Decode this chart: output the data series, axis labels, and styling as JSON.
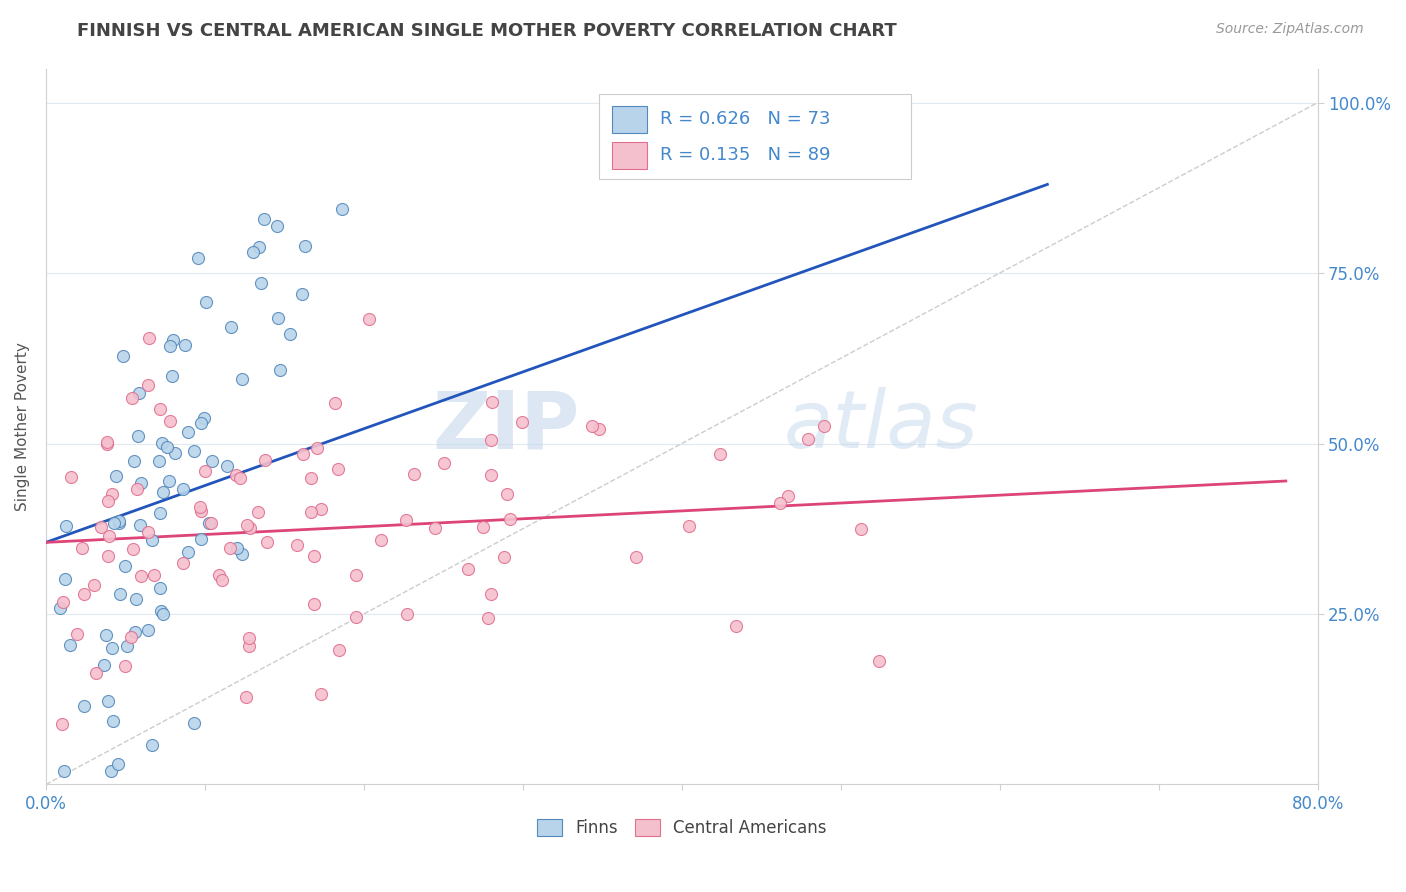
{
  "title": "FINNISH VS CENTRAL AMERICAN SINGLE MOTHER POVERTY CORRELATION CHART",
  "source": "Source: ZipAtlas.com",
  "ylabel": "Single Mother Poverty",
  "xlim": [
    0.0,
    0.8
  ],
  "ylim": [
    0.0,
    1.05
  ],
  "y_tick_positions": [
    0.25,
    0.5,
    0.75,
    1.0
  ],
  "y_tick_labels": [
    "25.0%",
    "50.0%",
    "75.0%",
    "100.0%"
  ],
  "finns_color": "#b8d4ea",
  "finns_edge_color": "#5588bb",
  "central_color": "#f5c0ce",
  "central_edge_color": "#e07090",
  "regression_finn_color": "#2255bb",
  "regression_central_color": "#dd4477",
  "diagonal_color": "#c0c0c0",
  "legend_R_finn": "R = 0.626",
  "legend_N_finn": "N = 73",
  "legend_R_central": "R = 0.135",
  "legend_N_central": "N = 89",
  "watermark_zip": "ZIP",
  "watermark_atlas": "atlas",
  "background_color": "#ffffff",
  "title_color": "#444444",
  "axis_color": "#4488cc",
  "seed": 42,
  "finns_N": 73,
  "central_N": 89
}
